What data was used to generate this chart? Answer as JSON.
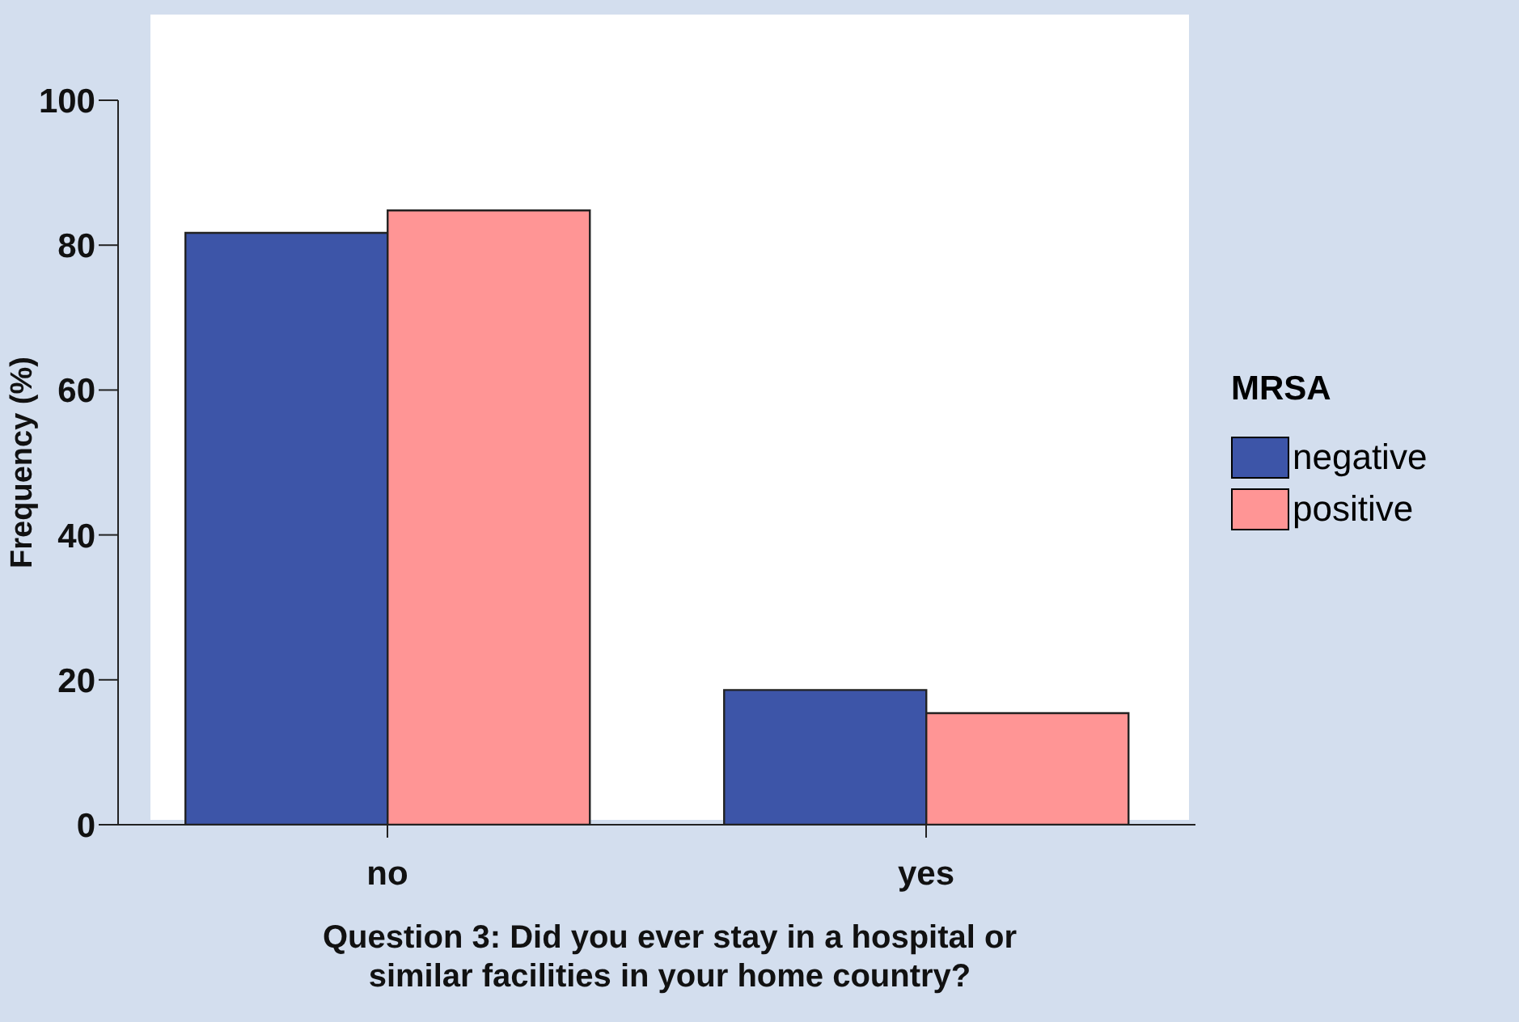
{
  "chart_data": {
    "type": "bar",
    "xlabel": "Question 3: Did you ever stay in a hospital or similar facilities in your home country?",
    "ylabel": "Frequency (%)",
    "legend_title": "MRSA",
    "categories": [
      "no",
      "yes"
    ],
    "series": [
      {
        "name": "negative",
        "color": "#3d55a8",
        "values": [
          81.7,
          18.6
        ]
      },
      {
        "name": "positive",
        "color": "#ff9595",
        "values": [
          84.8,
          15.4
        ]
      }
    ],
    "ylim": [
      0,
      100
    ],
    "yticks": [
      0,
      20,
      40,
      60,
      80,
      100
    ],
    "grid": false,
    "legend": "right"
  }
}
